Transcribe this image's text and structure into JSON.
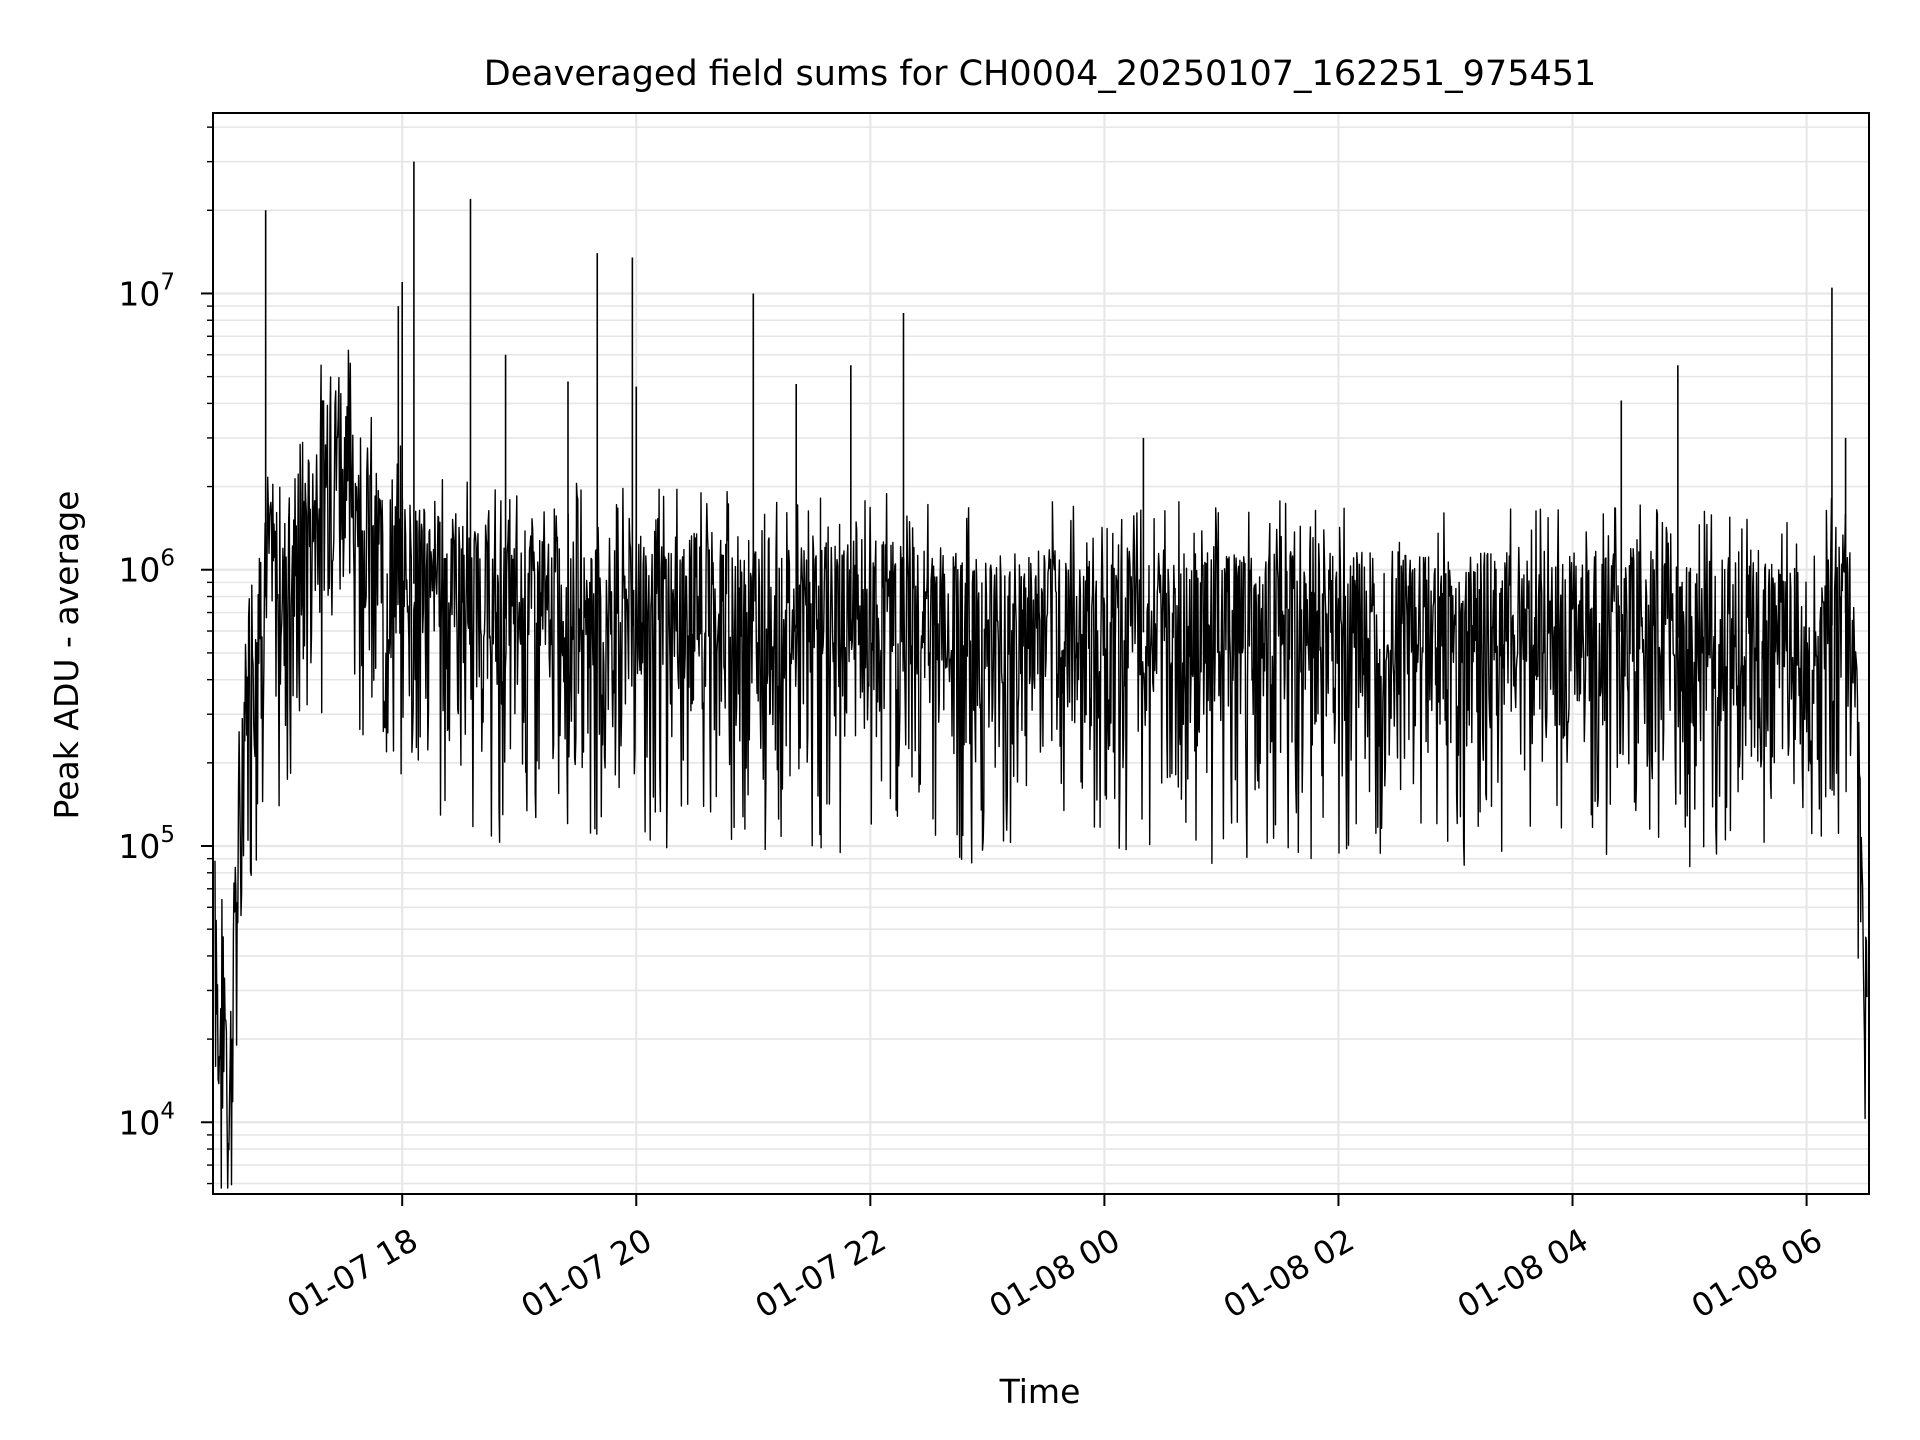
{
  "chart_data": {
    "type": "line",
    "title": "Deaveraged field sums for CH0004_20250107_162251_975451",
    "xlabel": "Time",
    "ylabel": "Peak ADU - average",
    "x_scale": "time",
    "y_scale": "log",
    "xlim": [
      "2025-01-07 16:23",
      "2025-01-08 06:32"
    ],
    "ylim": [
      5500,
      45000000
    ],
    "x_ticks": [
      {
        "t": "2025-01-07 18:00",
        "label": "01-07 18"
      },
      {
        "t": "2025-01-07 20:00",
        "label": "01-07 20"
      },
      {
        "t": "2025-01-07 22:00",
        "label": "01-07 22"
      },
      {
        "t": "2025-01-08 00:00",
        "label": "01-08 00"
      },
      {
        "t": "2025-01-08 02:00",
        "label": "01-08 02"
      },
      {
        "t": "2025-01-08 04:00",
        "label": "01-08 04"
      },
      {
        "t": "2025-01-08 06:00",
        "label": "01-08 06"
      }
    ],
    "y_ticks": [
      {
        "value": 10000,
        "base": "10",
        "exp": "4"
      },
      {
        "value": 100000,
        "base": "10",
        "exp": "5"
      },
      {
        "value": 1000000,
        "base": "10",
        "exp": "6"
      },
      {
        "value": 10000000,
        "base": "10",
        "exp": "7"
      }
    ],
    "grid": true,
    "series_color": "#000000",
    "series": [
      {
        "x": [
          "2025-01-07 16:24",
          "2025-01-07 16:26",
          "2025-01-07 16:29",
          "2025-01-07 16:31",
          "2025-01-07 16:34",
          "2025-01-07 16:36",
          "2025-01-07 16:39",
          "2025-01-07 16:41",
          "2025-01-07 16:44",
          "2025-01-07 16:48",
          "2025-01-07 16:52",
          "2025-01-07 16:56",
          "2025-01-07 17:00",
          "2025-01-07 17:05",
          "2025-01-07 17:10",
          "2025-01-07 17:15",
          "2025-01-07 17:20",
          "2025-01-07 17:25",
          "2025-01-07 17:30",
          "2025-01-07 17:35",
          "2025-01-07 17:40",
          "2025-01-07 17:45",
          "2025-01-07 17:50",
          "2025-01-07 17:55",
          "2025-01-07 18:00",
          "2025-01-07 18:05",
          "2025-01-07 18:10",
          "2025-01-07 18:20",
          "2025-01-07 18:30",
          "2025-01-07 18:40",
          "2025-01-07 18:50",
          "2025-01-07 19:00",
          "2025-01-07 19:15",
          "2025-01-07 19:30",
          "2025-01-07 19:45",
          "2025-01-07 20:00",
          "2025-01-07 20:15",
          "2025-01-07 20:30",
          "2025-01-07 21:00",
          "2025-01-07 21:30",
          "2025-01-07 22:00",
          "2025-01-07 22:30",
          "2025-01-07 23:00",
          "2025-01-07 23:30",
          "2025-01-08 00:00",
          "2025-01-08 00:30",
          "2025-01-08 01:00",
          "2025-01-08 01:30",
          "2025-01-08 02:00",
          "2025-01-08 02:30",
          "2025-01-08 03:00",
          "2025-01-08 03:30",
          "2025-01-08 04:00",
          "2025-01-08 04:30",
          "2025-01-08 05:00",
          "2025-01-08 05:30",
          "2025-01-08 06:00",
          "2025-01-08 06:10",
          "2025-01-08 06:20",
          "2025-01-08 06:25",
          "2025-01-08 06:28",
          "2025-01-08 06:31"
        ],
        "y": [
          60000,
          15000,
          30000,
          9000,
          40000,
          80000,
          250000,
          400000,
          550000,
          700000,
          900000,
          800000,
          1000000,
          1100000,
          1200000,
          1500000,
          2200000,
          2800000,
          2600000,
          2000000,
          1500000,
          1200000,
          1000000,
          900000,
          950000,
          900000,
          850000,
          800000,
          750000,
          700000,
          650000,
          700000,
          650000,
          700000,
          650000,
          700000,
          650000,
          700000,
          650000,
          600000,
          650000,
          600000,
          550000,
          600000,
          580000,
          600000,
          570000,
          600000,
          580000,
          600000,
          560000,
          600000,
          580000,
          600000,
          560000,
          550000,
          520000,
          600000,
          700000,
          500000,
          80000,
          18000
        ]
      }
    ],
    "peaks": [
      {
        "t": "2025-01-07 16:50",
        "value": 20000000
      },
      {
        "t": "2025-01-07 18:06",
        "value": 30000000
      },
      {
        "t": "2025-01-07 18:00",
        "value": 11000000
      },
      {
        "t": "2025-01-07 17:58",
        "value": 9000000
      },
      {
        "t": "2025-01-07 18:35",
        "value": 22000000
      },
      {
        "t": "2025-01-07 18:53",
        "value": 6000000
      },
      {
        "t": "2025-01-07 19:25",
        "value": 4800000
      },
      {
        "t": "2025-01-07 19:40",
        "value": 14000000
      },
      {
        "t": "2025-01-07 19:58",
        "value": 13500000
      },
      {
        "t": "2025-01-07 20:00",
        "value": 4600000
      },
      {
        "t": "2025-01-07 21:00",
        "value": 10000000
      },
      {
        "t": "2025-01-07 21:22",
        "value": 4700000
      },
      {
        "t": "2025-01-07 21:50",
        "value": 5500000
      },
      {
        "t": "2025-01-07 22:17",
        "value": 8500000
      },
      {
        "t": "2025-01-08 00:20",
        "value": 3000000
      },
      {
        "t": "2025-01-08 04:25",
        "value": 4100000
      },
      {
        "t": "2025-01-08 04:54",
        "value": 5500000
      },
      {
        "t": "2025-01-08 06:13",
        "value": 10500000
      },
      {
        "t": "2025-01-08 06:20",
        "value": 3000000
      }
    ]
  }
}
